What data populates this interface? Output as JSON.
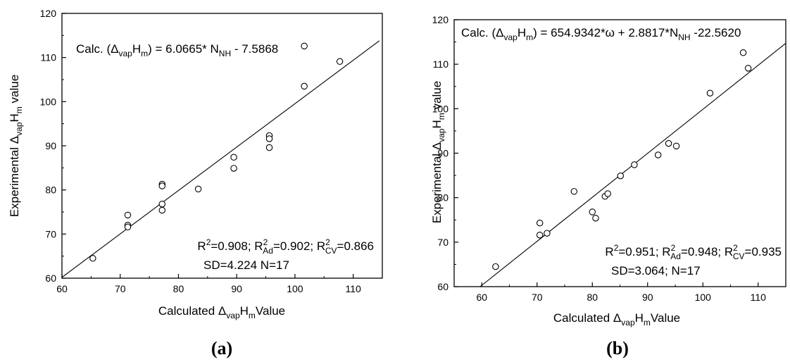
{
  "chart_data": [
    {
      "type": "scatter",
      "panel_label": "(a)",
      "xlabel": {
        "pre": "Calculated Δ",
        "sub1": "vap",
        "mid": "H",
        "sub2": "m",
        "post": "Value"
      },
      "ylabel": {
        "pre": "Experimental Δ",
        "sub1": "vap",
        "mid": "H",
        "sub2": "m",
        "post": " value"
      },
      "xlim": [
        60,
        115
      ],
      "ylim": [
        60,
        120
      ],
      "xticks": [
        60,
        70,
        80,
        90,
        100,
        110
      ],
      "yticks": [
        60,
        70,
        80,
        90,
        100,
        110,
        120
      ],
      "grid": false,
      "points": [
        [
          65.3,
          64.5
        ],
        [
          71.3,
          74.3
        ],
        [
          71.3,
          72.0
        ],
        [
          71.3,
          71.6
        ],
        [
          77.2,
          81.3
        ],
        [
          77.2,
          80.9
        ],
        [
          77.2,
          76.8
        ],
        [
          77.2,
          75.4
        ],
        [
          83.4,
          80.2
        ],
        [
          89.5,
          87.4
        ],
        [
          89.5,
          84.9
        ],
        [
          95.6,
          92.3
        ],
        [
          95.6,
          91.6
        ],
        [
          95.6,
          89.6
        ],
        [
          101.6,
          112.6
        ],
        [
          101.6,
          103.5
        ],
        [
          107.7,
          109.1
        ]
      ],
      "fit_line": [
        [
          60,
          60.2
        ],
        [
          114.5,
          113.8
        ]
      ],
      "equation": {
        "pre": "Calc. (Δ",
        "sub1": "vap",
        "mid": "H",
        "sub2": "m",
        "post1": ") = 6.0665* N",
        "sub3": "NH",
        "post2": " - 7.5868"
      },
      "stats_line1": {
        "r2": "R",
        "sup1": "2",
        "t1": "=0.908; R",
        "sup2": "2",
        "sub2": "Ad",
        "t2": "=0.902; R",
        "sup3": "2",
        "sub3": "CV",
        "t3": "=0.866"
      },
      "stats_line2": "SD=4.224  N=17"
    },
    {
      "type": "scatter",
      "panel_label": "(b)",
      "xlabel": {
        "pre": "Calculated Δ",
        "sub1": "vap",
        "mid": "H",
        "sub2": "m",
        "post": "Value"
      },
      "ylabel": {
        "pre": "Experimental Δ",
        "sub1": "vap",
        "mid": "H",
        "sub2": "m",
        "post": " value"
      },
      "xlim": [
        55,
        115
      ],
      "ylim": [
        60,
        120
      ],
      "xticks": [
        60,
        70,
        80,
        90,
        100,
        110
      ],
      "yticks": [
        60,
        70,
        80,
        90,
        100,
        110,
        120
      ],
      "grid": false,
      "points": [
        [
          62.5,
          64.5
        ],
        [
          70.5,
          74.3
        ],
        [
          70.5,
          71.6
        ],
        [
          71.8,
          72.0
        ],
        [
          76.7,
          81.4
        ],
        [
          80.0,
          76.8
        ],
        [
          80.6,
          75.4
        ],
        [
          82.3,
          80.3
        ],
        [
          82.8,
          80.9
        ],
        [
          85.1,
          84.9
        ],
        [
          87.6,
          87.4
        ],
        [
          91.9,
          89.6
        ],
        [
          93.8,
          92.2
        ],
        [
          95.2,
          91.6
        ],
        [
          101.3,
          103.5
        ],
        [
          107.3,
          112.6
        ],
        [
          108.2,
          109.1
        ]
      ],
      "fit_line": [
        [
          59.7,
          60.0
        ],
        [
          115,
          114.7
        ]
      ],
      "equation": {
        "pre": "Calc. (Δ",
        "sub1": "vap",
        "mid": "H",
        "sub2": "m",
        "post1": ") = 654.9342*ω + 2.8817*N",
        "sub3": "NH",
        "post2": " -22.5620"
      },
      "stats_line1": {
        "r2": "R",
        "sup1": "2",
        "t1": "=0.951; R",
        "sup2": "2",
        "sub2": "Ad",
        "t2": "=0.948; R",
        "sup3": "2",
        "sub3": "CV",
        "t3": "=0.935"
      },
      "stats_line2": "SD=3.064;  N=17"
    }
  ]
}
